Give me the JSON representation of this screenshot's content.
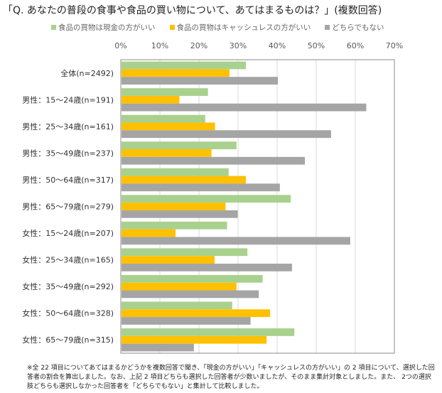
{
  "chart_data": {
    "type": "bar",
    "orientation": "horizontal",
    "title": "「Q. あなたの普段の食事や食品の買い物について、あてはまるものは？」(複数回答)",
    "categories": [
      "全体(n=2492)",
      "男性：15～24歳(n=191)",
      "男性：25～34歳(n=161)",
      "男性：35～49歳(n=237)",
      "男性：50～64歳(n=317)",
      "男性：65～79歳(n=279)",
      "女性：15～24歳(n=207)",
      "女性：25～34歳(n=165)",
      "女性：35～49歳(n=292)",
      "女性：50～64歳(n=328)",
      "女性：65～79歳(n=315)"
    ],
    "series": [
      {
        "name": "食品の買物は現金の方がいい",
        "color": "#a9d18e",
        "values": [
          32.0,
          22.3,
          21.6,
          29.6,
          27.6,
          43.5,
          27.2,
          32.4,
          36.3,
          28.5,
          44.4
        ]
      },
      {
        "name": "食品の買物はキャッシュレスの方がいい",
        "color": "#ffc000",
        "values": [
          27.8,
          15.0,
          24.1,
          23.2,
          32.0,
          26.8,
          14.0,
          24.0,
          29.6,
          38.2,
          37.3
        ]
      },
      {
        "name": "どちらでもない",
        "color": "#a5a5a5",
        "values": [
          40.2,
          62.8,
          53.8,
          47.1,
          40.7,
          29.9,
          58.7,
          43.8,
          35.3,
          33.2,
          18.7
        ]
      }
    ],
    "xlim": [
      0,
      70
    ],
    "xticks": [
      "0%",
      "10%",
      "20%",
      "30%",
      "40%",
      "50%",
      "60%",
      "70%"
    ],
    "grid": true,
    "legend_position": "top"
  },
  "note": "※全 22 項目についてあてはまるかどうかを複数回答で聞き、「現金の方がいい」「キャッシュレスの方がいい」の 2 項目について、選択した回答者の割合を算出しました。なお、上記 2 項目どちらも選択した回答者が少数いましたが、そのまま集計対象としました。また、 2つの選択肢どちらも選択しなかった回答者を「どちらでもない」と集計して比較しました。"
}
